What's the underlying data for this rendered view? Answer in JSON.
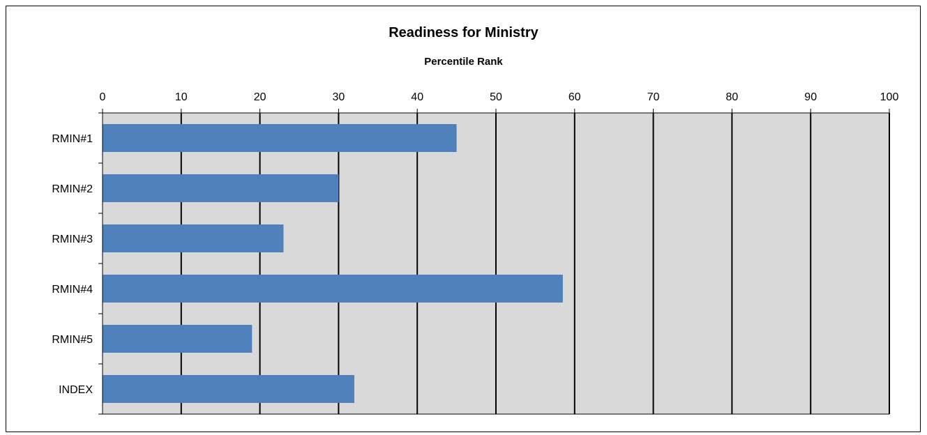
{
  "chart_data": {
    "type": "bar",
    "orientation": "horizontal",
    "title": "Readiness for Ministry",
    "subtitle": "Percentile Rank",
    "categories": [
      "RMIN#1",
      "RMIN#2",
      "RMIN#3",
      "RMIN#4",
      "RMIN#5",
      "INDEX"
    ],
    "values": [
      45,
      30,
      23,
      58.5,
      19,
      32
    ],
    "xlim": [
      0,
      100
    ],
    "xticks": [
      0,
      10,
      20,
      30,
      40,
      50,
      60,
      70,
      80,
      90,
      100
    ],
    "x_axis_position": "top",
    "grid": true,
    "colors": {
      "bar": "#4f81bd",
      "plot_bg": "#d9d9d9",
      "grid": "#000000"
    }
  }
}
